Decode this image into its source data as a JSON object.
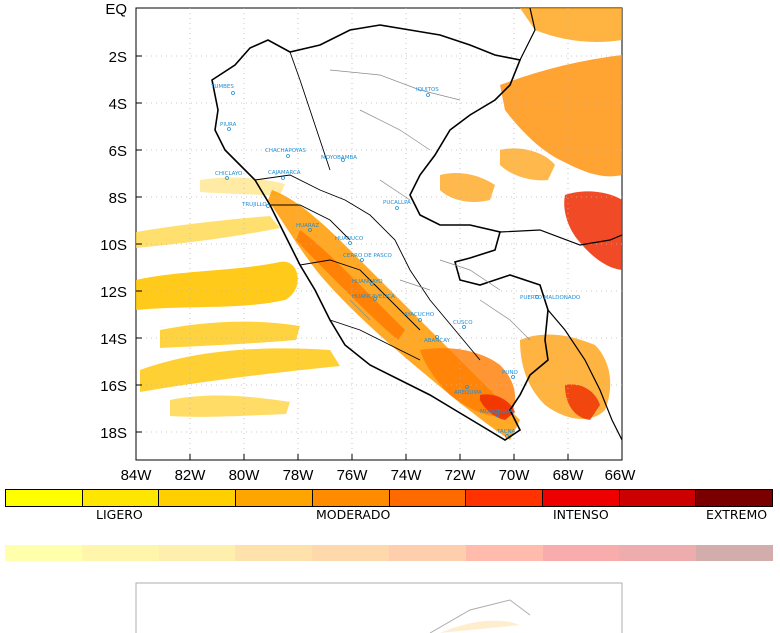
{
  "map": {
    "y_axis_labels": [
      "EQ",
      "2S",
      "4S",
      "6S",
      "8S",
      "10S",
      "12S",
      "14S",
      "16S",
      "18S"
    ],
    "x_axis_labels": [
      "84W",
      "82W",
      "80W",
      "78W",
      "76W",
      "74W",
      "72W",
      "70W",
      "68W",
      "66W"
    ],
    "cities": [
      "TUMBES",
      "PIURA",
      "CHICLAYO",
      "TRUJILLO",
      "CHACHAPOYAS",
      "MOYOBAMBA",
      "CAJAMARCA",
      "IQUITOS",
      "PUCALLPA",
      "HUARAZ",
      "HUANUCO",
      "CERRO DE PASCO",
      "HUANCAYO",
      "HUANCAVELICA",
      "AYACUCHO",
      "CUSCO",
      "ABANCAY",
      "PUERTO MALDONADO",
      "AREQUIPA",
      "PUNO",
      "MOQUEGUA",
      "TACNA"
    ]
  },
  "legend": {
    "colors": [
      "#ffff00",
      "#ffe600",
      "#ffcf00",
      "#ffa500",
      "#ff8c00",
      "#ff6a00",
      "#ff3300",
      "#ee0000",
      "#cc0000",
      "#7a0000"
    ],
    "labels": [
      "LIGERO",
      "MODERADO",
      "INTENSO",
      "EXTREMO"
    ]
  }
}
